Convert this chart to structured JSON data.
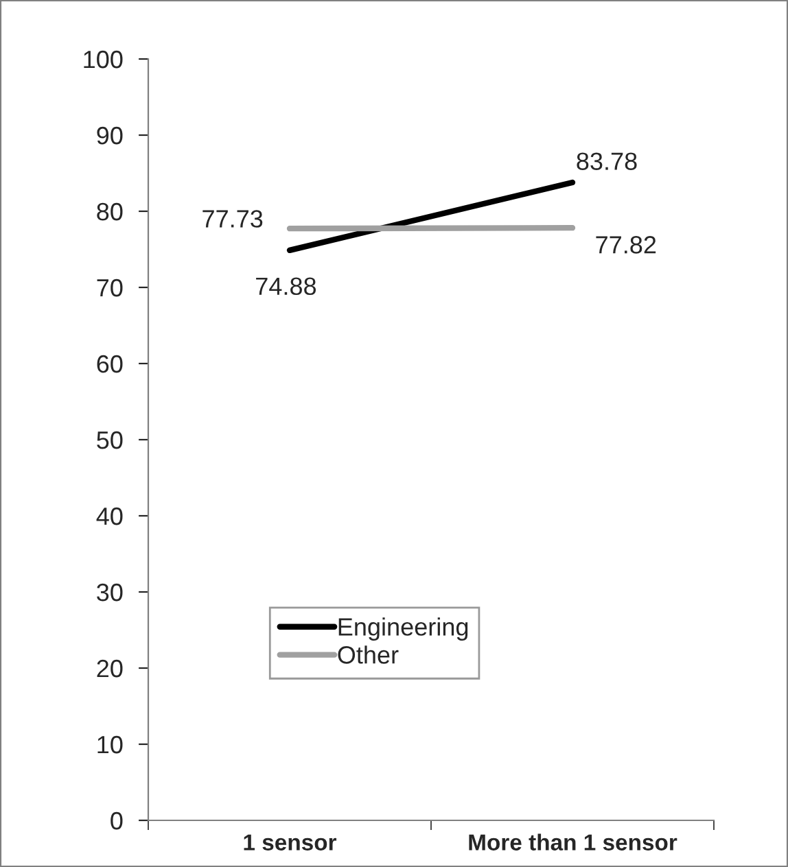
{
  "chart_data": {
    "type": "line",
    "categories": [
      "1 sensor",
      "More than 1 sensor"
    ],
    "series": [
      {
        "name": "Engineering",
        "color": "#000000",
        "values": [
          74.88,
          83.78
        ]
      },
      {
        "name": "Other",
        "color": "#a0a0a0",
        "values": [
          77.73,
          77.82
        ]
      }
    ],
    "ylim": [
      0,
      100
    ],
    "yticks": [
      0,
      10,
      20,
      30,
      40,
      50,
      60,
      70,
      80,
      90,
      100
    ],
    "data_labels": true,
    "legend": "bottom",
    "grid": false,
    "marker": "none",
    "line_style": "solid"
  }
}
